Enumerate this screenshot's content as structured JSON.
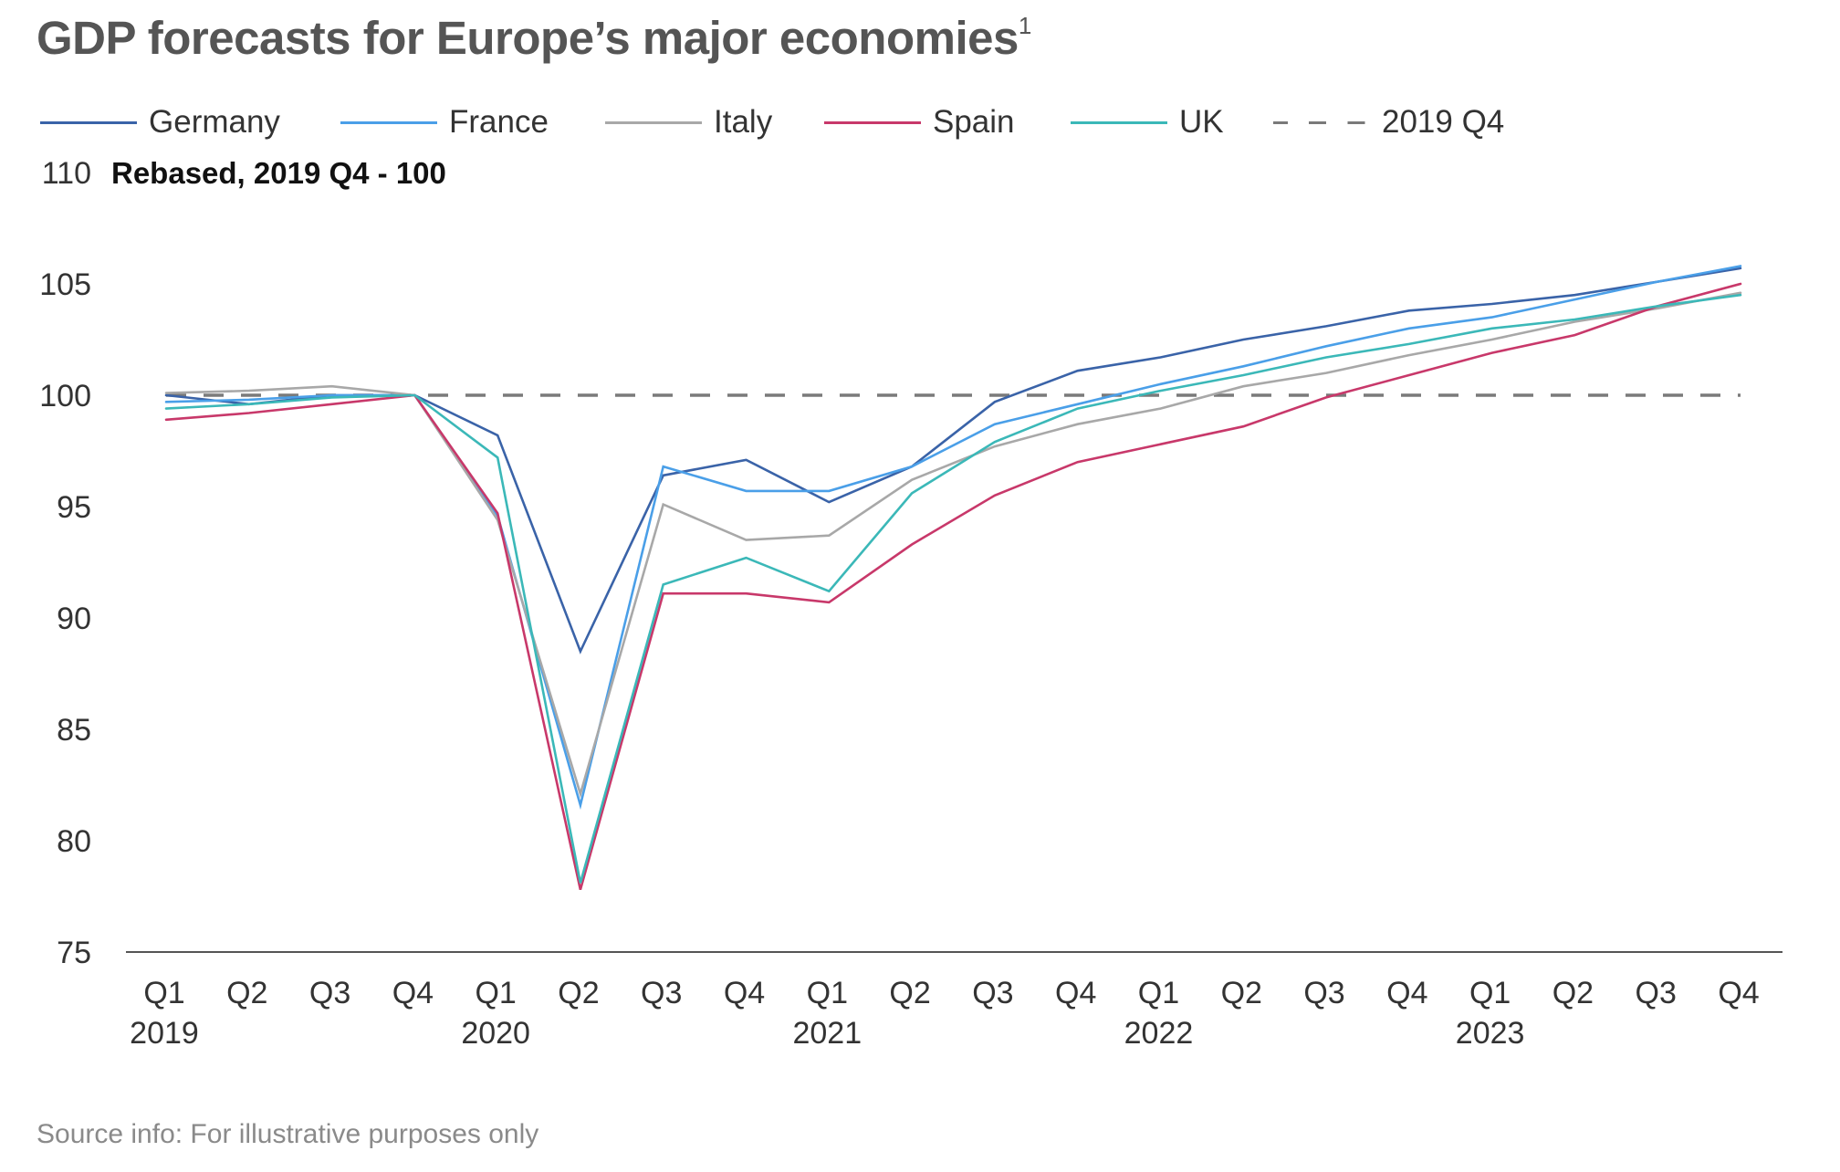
{
  "title": "GDP forecasts for Europe’s major economies",
  "title_footnote": "1",
  "source": "Source info: For illustrative purposes only",
  "chart_data": {
    "type": "line",
    "title": "GDP forecasts for Europe’s major economies",
    "ylabel": "Rebased, 2019 Q4 - 100",
    "xlabel": "",
    "ylim": [
      75,
      110
    ],
    "yticks": [
      75,
      80,
      85,
      90,
      95,
      100,
      105,
      110
    ],
    "grid": false,
    "legend_position": "top",
    "x_quarters": [
      "Q1",
      "Q2",
      "Q3",
      "Q4",
      "Q1",
      "Q2",
      "Q3",
      "Q4",
      "Q1",
      "Q2",
      "Q3",
      "Q4",
      "Q1",
      "Q2",
      "Q3",
      "Q4",
      "Q1",
      "Q2",
      "Q3",
      "Q4"
    ],
    "x_years": [
      {
        "label": "2019",
        "index": 0
      },
      {
        "label": "2020",
        "index": 4
      },
      {
        "label": "2021",
        "index": 8
      },
      {
        "label": "2022",
        "index": 12
      },
      {
        "label": "2023",
        "index": 16
      }
    ],
    "x": [
      "2019 Q1",
      "2019 Q2",
      "2019 Q3",
      "2019 Q4",
      "2020 Q1",
      "2020 Q2",
      "2020 Q3",
      "2020 Q4",
      "2021 Q1",
      "2021 Q2",
      "2021 Q3",
      "2021 Q4",
      "2022 Q1",
      "2022 Q2",
      "2022 Q3",
      "2022 Q4",
      "2023 Q1",
      "2023 Q2",
      "2023 Q3",
      "2023 Q4"
    ],
    "series": [
      {
        "name": "Germany",
        "color": "#3a63a8",
        "values": [
          100.0,
          99.6,
          100.0,
          100.0,
          98.2,
          88.5,
          96.4,
          97.1,
          95.2,
          96.8,
          99.7,
          101.1,
          101.7,
          102.5,
          103.1,
          103.8,
          104.1,
          104.5,
          105.1,
          105.7
        ]
      },
      {
        "name": "France",
        "color": "#4a9fe8",
        "values": [
          99.7,
          99.8,
          100.0,
          100.0,
          94.6,
          81.6,
          96.8,
          95.7,
          95.7,
          96.8,
          98.7,
          99.6,
          100.5,
          101.3,
          102.2,
          103.0,
          103.5,
          104.3,
          105.1,
          105.8
        ]
      },
      {
        "name": "Italy",
        "color": "#a8a8a8",
        "values": [
          100.1,
          100.2,
          100.4,
          100.0,
          94.4,
          82.1,
          95.1,
          93.5,
          93.7,
          96.2,
          97.7,
          98.7,
          99.4,
          100.4,
          101.0,
          101.8,
          102.5,
          103.3,
          103.9,
          104.6
        ]
      },
      {
        "name": "Spain",
        "color": "#c8386a",
        "values": [
          98.9,
          99.2,
          99.6,
          100.0,
          94.7,
          77.8,
          91.1,
          91.1,
          90.7,
          93.3,
          95.5,
          97.0,
          97.8,
          98.6,
          99.9,
          100.9,
          101.9,
          102.7,
          104.0,
          105.0
        ]
      },
      {
        "name": "UK",
        "color": "#3bb8b8",
        "values": [
          99.4,
          99.6,
          99.9,
          100.0,
          97.2,
          78.1,
          91.5,
          92.7,
          91.2,
          95.6,
          97.9,
          99.4,
          100.2,
          100.9,
          101.7,
          102.3,
          103.0,
          103.4,
          104.0,
          104.5
        ]
      }
    ],
    "reference_line": {
      "name": "2019 Q4",
      "value": 100,
      "style": "dashed",
      "color": "#7a7a7a"
    }
  },
  "legend": [
    {
      "label": "Germany",
      "color": "#3a63a8",
      "style": "solid"
    },
    {
      "label": "France",
      "color": "#4a9fe8",
      "style": "solid"
    },
    {
      "label": "Italy",
      "color": "#a8a8a8",
      "style": "solid"
    },
    {
      "label": "Spain",
      "color": "#c8386a",
      "style": "solid"
    },
    {
      "label": "UK",
      "color": "#3bb8b8",
      "style": "solid"
    },
    {
      "label": "2019 Q4",
      "color": "#7a7a7a",
      "style": "dashed"
    }
  ]
}
